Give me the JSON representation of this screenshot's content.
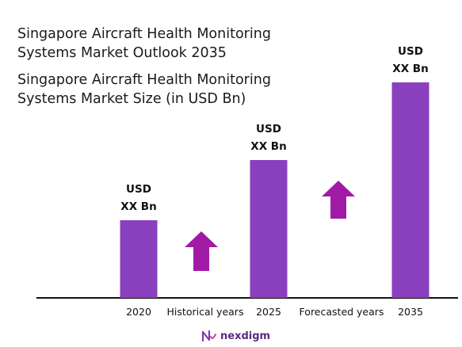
{
  "header": {
    "title": "Singapore Aircraft Health Monitoring\nSystems  Market Outlook 2035",
    "subtitle": "Singapore Aircraft Health Monitoring\nSystems  Market Size (in USD Bn)"
  },
  "chart_data": {
    "type": "bar",
    "title": "Singapore Aircraft Health Monitoring Systems  Market Outlook 2035",
    "subtitle": "Singapore Aircraft Health Monitoring Systems  Market Size (in USD Bn)",
    "categories": [
      "2020",
      "2025",
      "2035"
    ],
    "values": [
      0.98,
      1.74,
      2.72
    ],
    "data_labels": [
      "USD\nXX Bn",
      "USD\nXX Bn",
      "USD\nXX Bn"
    ],
    "ylim": [
      0,
      2.8
    ],
    "bar_color": "#8a3fbf",
    "annotations": [
      {
        "text": "Historical years",
        "between": [
          "2020",
          "2025"
        ],
        "arrow_color": "#a11aa6"
      },
      {
        "text": "Forecasted years",
        "between": [
          "2025",
          "2035"
        ],
        "arrow_color": "#a11aa6"
      }
    ],
    "grid": false,
    "legend": "none"
  },
  "brand": {
    "name": "nexdigm",
    "color": "#5c2a86"
  }
}
